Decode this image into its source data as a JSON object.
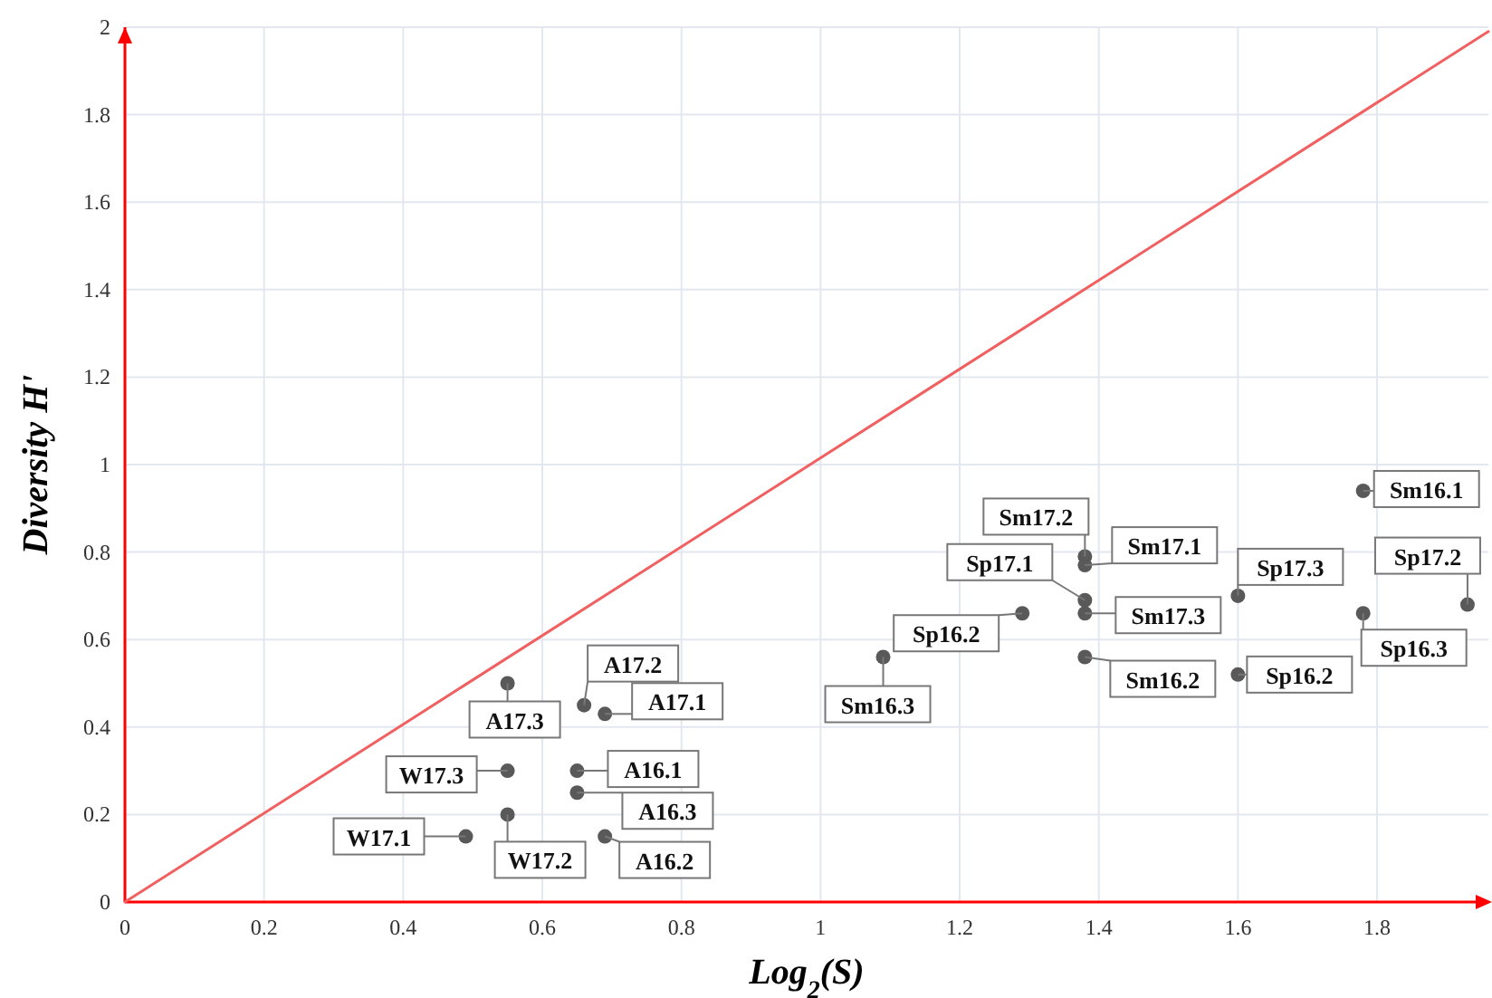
{
  "chart_data": {
    "type": "scatter",
    "xlabel": "Log$_{2}$(S)",
    "ylabel": "Diversity H'",
    "xlim": [
      0,
      1.96
    ],
    "ylim": [
      0,
      2
    ],
    "xticks": [
      0,
      0.2,
      0.4,
      0.6,
      0.8,
      1,
      1.2,
      1.4,
      1.6,
      1.8
    ],
    "yticks": [
      0,
      0.2,
      0.4,
      0.6,
      0.8,
      1,
      1.2,
      1.4,
      1.6,
      1.8,
      2
    ],
    "grid": true,
    "series": [
      {
        "color": "#595959",
        "marker": "circle",
        "x": [
          0.55,
          0.66,
          0.69,
          0.55,
          0.65,
          0.65,
          0.55,
          0.49,
          0.69,
          1.09,
          1.29,
          1.38,
          1.38,
          1.38,
          1.38,
          1.38,
          1.6,
          1.6,
          1.78,
          1.78,
          1.93
        ],
        "values": [
          0.5,
          0.45,
          0.43,
          0.3,
          0.3,
          0.25,
          0.2,
          0.15,
          0.15,
          0.56,
          0.66,
          0.79,
          0.77,
          0.69,
          0.66,
          0.56,
          0.7,
          0.52,
          0.94,
          0.66,
          0.68
        ]
      },
      {
        "type": "line",
        "color": "#f06060",
        "x": [
          0,
          1.96
        ],
        "values": [
          0,
          1.99
        ],
        "marker": "none"
      }
    ],
    "annotations": [
      {
        "text": "A17.3",
        "x": 0.55,
        "y": 0.5
      },
      {
        "text": "A17.2",
        "x": 0.66,
        "y": 0.45
      },
      {
        "text": "A17.1",
        "x": 0.69,
        "y": 0.43
      },
      {
        "text": "W17.3",
        "x": 0.55,
        "y": 0.3
      },
      {
        "text": "A16.1",
        "x": 0.65,
        "y": 0.3
      },
      {
        "text": "A16.3",
        "x": 0.65,
        "y": 0.25
      },
      {
        "text": "W17.2",
        "x": 0.55,
        "y": 0.2
      },
      {
        "text": "W17.1",
        "x": 0.49,
        "y": 0.15
      },
      {
        "text": "A16.2",
        "x": 0.69,
        "y": 0.15
      },
      {
        "text": "Sm16.3",
        "x": 1.09,
        "y": 0.56
      },
      {
        "text": "Sp16.2",
        "x": 1.29,
        "y": 0.66
      },
      {
        "text": "Sm17.2",
        "x": 1.38,
        "y": 0.79
      },
      {
        "text": "Sm17.1",
        "x": 1.38,
        "y": 0.77
      },
      {
        "text": "Sp17.1",
        "x": 1.38,
        "y": 0.69
      },
      {
        "text": "Sm17.3",
        "x": 1.38,
        "y": 0.66
      },
      {
        "text": "Sm16.2",
        "x": 1.38,
        "y": 0.56
      },
      {
        "text": "Sp17.3",
        "x": 1.6,
        "y": 0.7
      },
      {
        "text": "Sp16.2",
        "x": 1.6,
        "y": 0.52
      },
      {
        "text": "Sm16.1",
        "x": 1.78,
        "y": 0.94
      },
      {
        "text": "Sp16.3",
        "x": 1.78,
        "y": 0.66
      },
      {
        "text": "Sp17.2",
        "x": 1.93,
        "y": 0.68
      }
    ]
  }
}
